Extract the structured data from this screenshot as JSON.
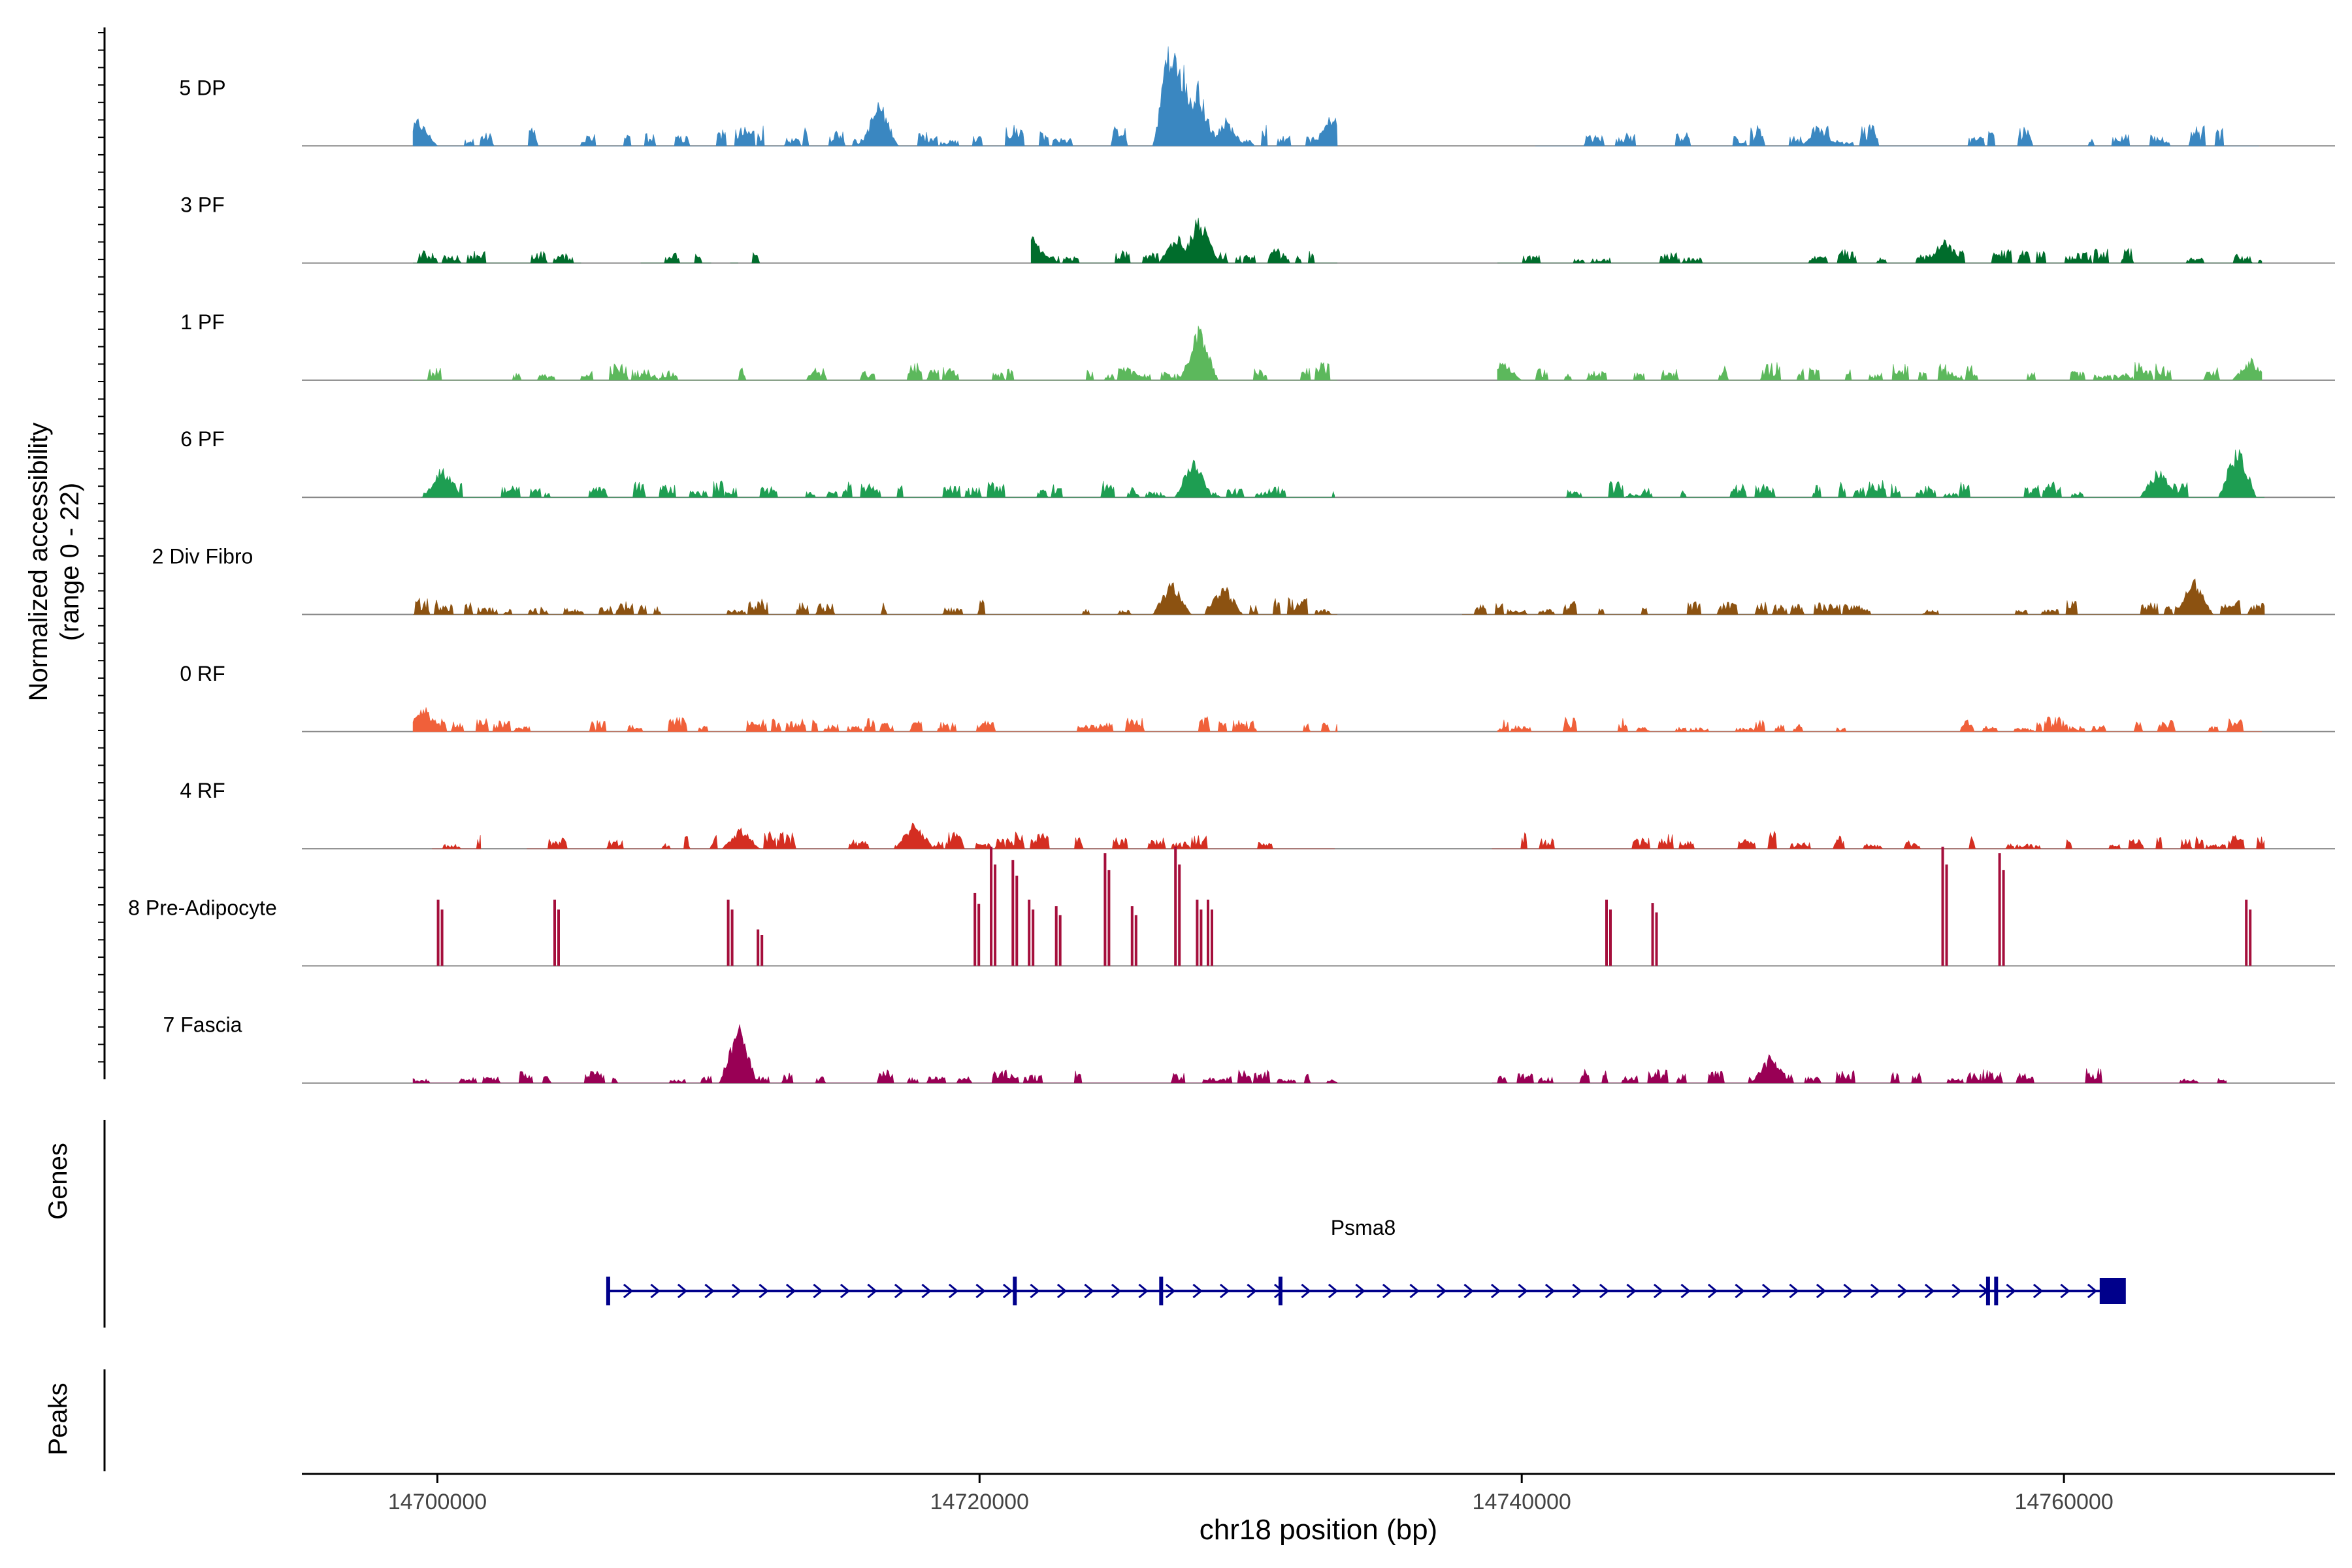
{
  "chart_data": {
    "type": "area",
    "title": "",
    "ylabel_line1": "Normalized accessibility",
    "ylabel_line2": "(range 0 - 22)",
    "xlabel": "chr18 position (bp)",
    "xlim": [
      14695000,
      14770000
    ],
    "ylim": [
      0,
      22
    ],
    "x_ticks": [
      14700000,
      14720000,
      14740000,
      14760000
    ],
    "x_tick_labels": [
      "14700000",
      "14720000",
      "14740000",
      "14760000"
    ],
    "tracks": [
      {
        "name": "5 DP",
        "color": "#3a87c1",
        "regions": [
          [
            14699100,
            14733200
          ],
          [
            14740500,
            14767200
          ]
        ],
        "baseline": 0.18,
        "peaks": [
          [
            14699300,
            0.5
          ],
          [
            14716300,
            0.85
          ],
          [
            14727100,
            2.3
          ],
          [
            14727500,
            1.6
          ],
          [
            14728000,
            1.3
          ],
          [
            14729100,
            0.5
          ],
          [
            14733000,
            0.6
          ],
          [
            14751000,
            0.35
          ]
        ]
      },
      {
        "name": "3 PF",
        "color": "#006d2c",
        "regions": [
          [
            14699100,
            14705300
          ],
          [
            14707500,
            14710100
          ],
          [
            14710800,
            14711100
          ],
          [
            14711600,
            14711900
          ],
          [
            14721900,
            14733200
          ],
          [
            14739100,
            14767300
          ]
        ],
        "baseline": 0.12,
        "peaks": [
          [
            14721900,
            0.55
          ],
          [
            14727300,
            0.55
          ],
          [
            14728100,
            0.9
          ],
          [
            14755600,
            0.45
          ]
        ]
      },
      {
        "name": "1 PF",
        "color": "#5cb85c",
        "regions": [
          [
            14699100,
            14733200
          ],
          [
            14739100,
            14767300
          ]
        ],
        "baseline": 0.15,
        "peaks": [
          [
            14728100,
            1.0
          ],
          [
            14739300,
            0.35
          ],
          [
            14766900,
            0.4
          ]
        ]
      },
      {
        "name": "6 PF",
        "color": "#1e9e52",
        "regions": [
          [
            14699400,
            14733100
          ],
          [
            14741600,
            14767400
          ]
        ],
        "baseline": 0.14,
        "peaks": [
          [
            14700200,
            0.6
          ],
          [
            14727900,
            0.75
          ],
          [
            14766400,
            1.0
          ],
          [
            14763500,
            0.55
          ]
        ]
      },
      {
        "name": "2 Div Fibro",
        "color": "#8c5211",
        "regions": [
          [
            14699100,
            14733200
          ],
          [
            14737800,
            14767400
          ]
        ],
        "baseline": 0.14,
        "peaks": [
          [
            14727100,
            0.7
          ],
          [
            14729000,
            0.6
          ],
          [
            14764800,
            0.7
          ]
        ]
      },
      {
        "name": "0 RF",
        "color": "#f0603a",
        "regions": [
          [
            14699100,
            14733200
          ],
          [
            14739100,
            14767300
          ]
        ],
        "baseline": 0.12,
        "peaks": [
          [
            14699500,
            0.5
          ]
        ]
      },
      {
        "name": "4 RF",
        "color": "#d42e21",
        "regions": [
          [
            14699800,
            14701600
          ],
          [
            14703300,
            14733100
          ],
          [
            14738900,
            14767400
          ]
        ],
        "baseline": 0.14,
        "peaks": [
          [
            14717600,
            0.55
          ],
          [
            14711200,
            0.4
          ]
        ]
      },
      {
        "name": "8 Pre-Adipocyte",
        "color": "#a50f3c",
        "spikes": [
          [
            14700100,
            1.0
          ],
          [
            14704400,
            1.0
          ],
          [
            14710800,
            1.0
          ],
          [
            14711900,
            0.55
          ],
          [
            14719900,
            1.1
          ],
          [
            14720500,
            1.8
          ],
          [
            14721300,
            1.6
          ],
          [
            14721900,
            1.0
          ],
          [
            14722900,
            0.9
          ],
          [
            14724700,
            1.7
          ],
          [
            14725700,
            0.9
          ],
          [
            14727300,
            1.8
          ],
          [
            14728100,
            1.0
          ],
          [
            14728500,
            1.0
          ],
          [
            14743200,
            1.0
          ],
          [
            14744900,
            0.95
          ],
          [
            14755600,
            1.8
          ],
          [
            14757700,
            1.7
          ],
          [
            14766800,
            1.0
          ]
        ]
      },
      {
        "name": "7 Fascia",
        "color": "#990055",
        "regions": [
          [
            14699100,
            14733200
          ],
          [
            14738900,
            14766000
          ]
        ],
        "baseline": 0.12,
        "peaks": [
          [
            14711100,
            1.1
          ],
          [
            14749200,
            0.55
          ]
        ]
      }
    ],
    "genes_label": "Genes",
    "gene": {
      "name": "Psma8",
      "start": 14706300,
      "end": 14762000,
      "color": "#00008b",
      "exons": [
        14706300,
        14721300,
        14726700,
        14731100,
        14757200,
        14757500,
        14761800
      ]
    },
    "peaks_label": "Peaks"
  }
}
